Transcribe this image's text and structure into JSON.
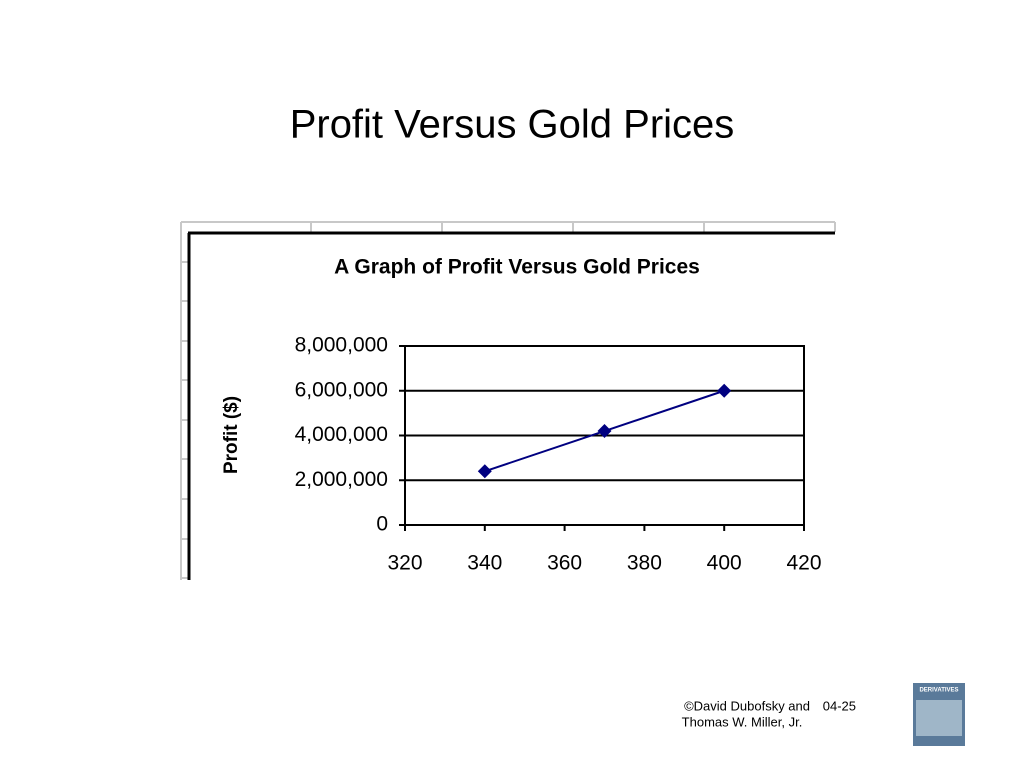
{
  "slide_title": "Profit Versus Gold Prices",
  "chart_data": {
    "type": "line",
    "title": "A Graph of Profit Versus Gold Prices",
    "y_label": "Profit ($)",
    "x": [
      340,
      370,
      400
    ],
    "series": [
      {
        "color": "#000080",
        "values": [
          2400000,
          4200000,
          6000000
        ]
      }
    ],
    "xlim": [
      320,
      420
    ],
    "xticks": [
      320,
      340,
      360,
      380,
      400,
      420
    ],
    "ylim": [
      0,
      8000000
    ],
    "yticks": [
      0,
      {
        "value": 2000000,
        "label": "2,000,000"
      },
      {
        "value": 4000000,
        "label": "4,000,000"
      },
      {
        "value": 6000000,
        "label": "6,000,000"
      },
      {
        "value": 8000000,
        "label": "8,000,000"
      }
    ],
    "grid": true
  },
  "footer": {
    "credit_line1": "©David Dubofsky and",
    "page": "04-25",
    "credit_line2": "Thomas W. Miller, Jr.",
    "book": "DERIVATIVES"
  }
}
